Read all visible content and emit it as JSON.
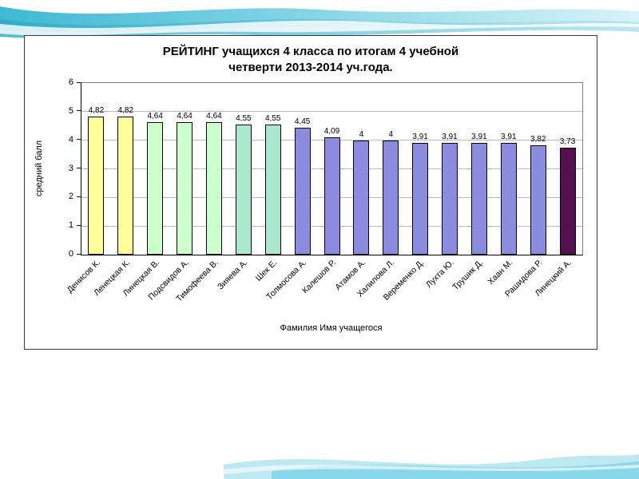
{
  "slide": {
    "title_line1": "РЕЙТИНГ учащихся 4 класса по итогам 4 учебной",
    "title_line2": "четверти 2013-2014 уч.года."
  },
  "chart_data": {
    "type": "bar",
    "title": "РЕЙТИНГ учащихся 4 класса по итогам 4 учебной четверти 2013-2014 уч.года.",
    "xlabel": "Фамилия Имя учащегося",
    "ylabel": "средний балл",
    "ylim": [
      0,
      6
    ],
    "yticks": [
      0,
      1,
      2,
      3,
      4,
      5,
      6
    ],
    "grid": true,
    "legend": false,
    "categories": [
      "Денисов К.",
      "Ленецкая К.",
      "Линецкая В.",
      "Подсвидов А.",
      "Тимофеева В.",
      "Зияева А.",
      "Шек Е.",
      "Толмосова А.",
      "Калешов Р.",
      "Атамов А.",
      "Халилова Л.",
      "Веременко Д.",
      "Лухта Ю.",
      "Трушик Д.",
      "Хаан М.",
      "Рашидова Р.",
      "Линецкий А."
    ],
    "values": [
      4.82,
      4.82,
      4.64,
      4.64,
      4.64,
      4.55,
      4.55,
      4.45,
      4.09,
      4,
      4,
      3.91,
      3.91,
      3.91,
      3.91,
      3.82,
      3.73
    ],
    "value_labels": [
      "4,82",
      "4,82",
      "4,64",
      "4,64",
      "4,64",
      "4,55",
      "4,55",
      "4,45",
      "4,09",
      "4",
      "4",
      "3,91",
      "3,91",
      "3,91",
      "3,91",
      "3,82",
      "3,73"
    ],
    "bar_colors": [
      "#FFFF99",
      "#FFFF99",
      "#CCFFCC",
      "#CCFFCC",
      "#CCFFCC",
      "#A9E7CE",
      "#A9E7CE",
      "#8B8BE0",
      "#8B8BE0",
      "#8B8BE0",
      "#8B8BE0",
      "#8B8BE0",
      "#8B8BE0",
      "#8B8BE0",
      "#8B8BE0",
      "#8B8BE0",
      "#55104F"
    ],
    "colors": {
      "bar_border": "#000000",
      "gridline": "#b8b8b8",
      "plot_border": "#808080",
      "decoration_teal": "#3fb9d3",
      "decoration_light": "#d9f3f8"
    }
  }
}
